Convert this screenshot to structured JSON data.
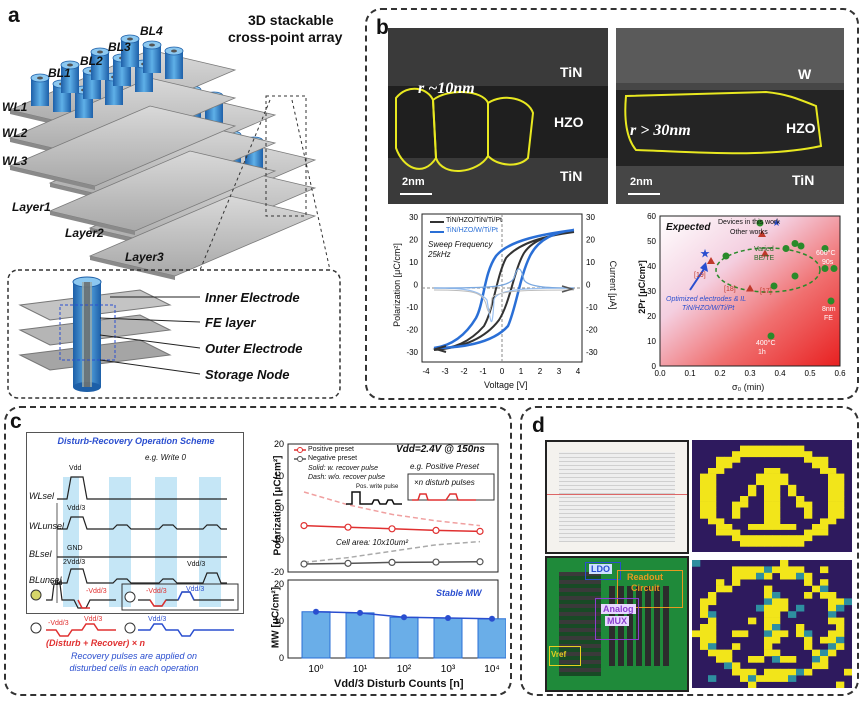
{
  "panel_a": {
    "letter": "a",
    "title_line1": "3D stackable",
    "title_line2": "cross-point array",
    "bitlines": [
      "BL1",
      "BL2",
      "BL3",
      "BL4"
    ],
    "wordlines": [
      "WL1",
      "WL2",
      "WL3"
    ],
    "layers": [
      "Layer1",
      "Layer2",
      "Layer3"
    ],
    "inset_labels": [
      "Inner Electrode",
      "FE layer",
      "Outer Electrode",
      "Storage Node"
    ]
  },
  "panel_b": {
    "letter": "b",
    "tem_left": {
      "top": "TiN",
      "middle": "HZO",
      "bottom": "TiN",
      "grain": "r ~10nm",
      "scale": "2nm"
    },
    "tem_right": {
      "top": "W",
      "middle": "HZO",
      "bottom": "TiN",
      "grain": "r > 30nm",
      "scale": "2nm"
    },
    "hysteresis": {
      "legend": [
        "TiN/HZO/TiN/Ti/Pt",
        "TiN/HZO/W/Ti/Pt"
      ],
      "note_line1": "Sweep Frequency",
      "note_line2": "25kHz",
      "xlabel": "Voltage [V]",
      "ylabel_left": "Polarization [μC/cm²]",
      "ylabel_right": "Current [μA]",
      "xticks": [
        "-4",
        "-3",
        "-2",
        "-1",
        "0",
        "1",
        "2",
        "3",
        "4"
      ],
      "yticks_left": [
        "-30",
        "-20",
        "-10",
        "0",
        "10",
        "20",
        "30"
      ],
      "yticks_right": [
        "-30",
        "-20",
        "-10",
        "0",
        "10",
        "20",
        "30"
      ]
    },
    "benchmark": {
      "expected": "Expected",
      "legend_this": "Devices in this work",
      "legend_other": "Other works",
      "ann_varied_line1": "Varied",
      "ann_varied_line2": "BE/TE",
      "ann_600_line1": "600°C",
      "ann_600_line2": "90s",
      "ann_8nm_line1": "8nm",
      "ann_8nm_line2": "FE",
      "ann_400_line1": "400°C",
      "ann_400_line2": "1h",
      "ref19": "[19]",
      "ref18": "[18]",
      "ref17": "[17]",
      "opt_line1": "Optimized electrodes & IL",
      "opt_line2": "TiN/HZO/W/Ti/Pt",
      "xlabel": "σ₀ (min)",
      "ylabel": "2Pr [μC/cm²]",
      "xticks": [
        "0.0",
        "0.1",
        "0.2",
        "0.3",
        "0.4",
        "0.5",
        "0.6"
      ],
      "yticks": [
        "0",
        "10",
        "20",
        "30",
        "40",
        "50",
        "60"
      ]
    }
  },
  "panel_c": {
    "letter": "c",
    "scheme_title": "Disturb-Recovery Operation Scheme",
    "write_note": "e.g. Write 0",
    "signals": [
      "WLsel",
      "WLunsel",
      "BLsel",
      "BLunsel"
    ],
    "levels": [
      "Vdd",
      "Vdd/3",
      "GND",
      "2Vdd/3",
      "Vdd/3"
    ],
    "pulse_labels": [
      "Vdd",
      "-Vdd/3",
      "Vdd/3",
      "-Vdd/3",
      "Vdd/3",
      "-Vdd/3",
      "Vdd/3"
    ],
    "formula": "(Disturb + Recover) × n",
    "recovery_note_line1": "Recovery pulses are applied on",
    "recovery_note_line2": "disturbed cells in each operation",
    "top_chart": {
      "legend": [
        "Positive preset",
        "Negative preset"
      ],
      "vdd_note": "Vdd=2.4V @ 150ns",
      "solid_note": "Solid: w. recover pulse",
      "dash_note": "Dash: w/o. recover pulse",
      "example_note": "e.g. Positive Preset",
      "pos_write": "Pos. write pulse",
      "disturb_note": "×n disturb pulses",
      "cell_area": "Cell area: 10x10um²",
      "ylabel": "Polarization [μC/cm²]",
      "yticks": [
        "20",
        "10",
        "0",
        "-10",
        "-20"
      ]
    },
    "bottom_chart": {
      "stable": "Stable MW",
      "ylabel": "MW [μC/cm²]",
      "yticks": [
        "20",
        "10",
        "0"
      ],
      "xlabel": "Vdd/3 Disturb Counts [n]",
      "xticks": [
        "10⁰",
        "10¹",
        "10²",
        "10³",
        "10⁴"
      ]
    }
  },
  "panel_d": {
    "letter": "d",
    "chip_labels": [
      "LDO",
      "Readout",
      "Circuit",
      "Analog",
      "MUX",
      "Vref"
    ],
    "colors": {
      "pattern_bg": "#2e1a5e",
      "pattern_fg": "#f2e51a",
      "pcb": "#1f8a3a"
    }
  },
  "chart_data": [
    {
      "type": "scatter",
      "title": "",
      "xlabel": "σ₀ (min)",
      "ylabel": "2Pr [μC/cm²]",
      "xlim": [
        0.0,
        0.6
      ],
      "ylim": [
        0,
        60
      ],
      "series": [
        {
          "name": "Devices in this work",
          "x": [
            0.15
          ],
          "y": [
            45
          ]
        },
        {
          "name": "Other works",
          "x": [
            0.17,
            0.3,
            0.38,
            0.35,
            0.45,
            0.47,
            0.55,
            0.58,
            0.37,
            0.45,
            0.55,
            0.22,
            0.42,
            0.57
          ],
          "y": [
            42,
            31,
            32,
            45,
            49,
            48,
            47,
            39,
            12,
            36,
            39,
            44,
            47,
            26
          ]
        }
      ]
    },
    {
      "type": "line",
      "title": "",
      "ylabel": "Polarization [μC/cm²]",
      "xlabel": "Vdd/3 Disturb Counts [n]",
      "ylim": [
        -20,
        20
      ],
      "x": [
        1,
        10,
        100,
        1000,
        10000
      ],
      "series": [
        {
          "name": "Positive preset",
          "values": [
            -5.5,
            -6.0,
            -6.5,
            -7.0,
            -7.3
          ]
        },
        {
          "name": "Negative preset",
          "values": [
            -17.5,
            -17.3,
            -17.0,
            -16.9,
            -16.8
          ]
        }
      ]
    },
    {
      "type": "bar",
      "title": "",
      "ylabel": "MW [μC/cm²]",
      "xlabel": "Vdd/3 Disturb Counts [n]",
      "categories": [
        "10⁰",
        "10¹",
        "10²",
        "10³",
        "10⁴"
      ],
      "values": [
        12.5,
        12.2,
        11.0,
        10.8,
        10.6
      ],
      "ylim": [
        0,
        20
      ]
    }
  ]
}
